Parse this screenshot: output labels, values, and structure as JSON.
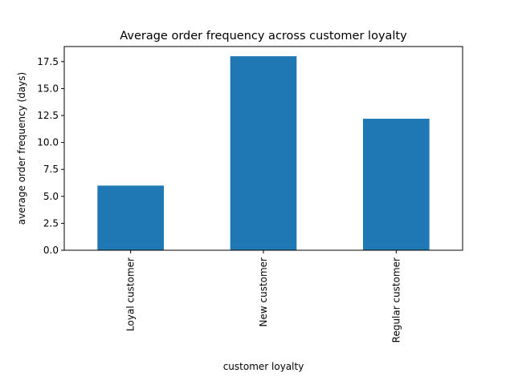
{
  "chart_data": {
    "type": "bar",
    "title": "Average order frequency across customer loyalty",
    "xlabel": "customer loyalty",
    "ylabel": "average order frequency (days)",
    "categories": [
      "Loyal customer",
      "New customer",
      "Regular customer"
    ],
    "values": [
      6.0,
      18.0,
      12.2
    ],
    "ylim": [
      0,
      18.9
    ],
    "yticks": [
      0.0,
      2.5,
      5.0,
      7.5,
      10.0,
      12.5,
      15.0,
      17.5
    ],
    "ytick_labels": [
      "0.0",
      "2.5",
      "5.0",
      "7.5",
      "10.0",
      "12.5",
      "15.0",
      "17.5"
    ],
    "grid": false,
    "bar_color": "#1f77b4"
  }
}
